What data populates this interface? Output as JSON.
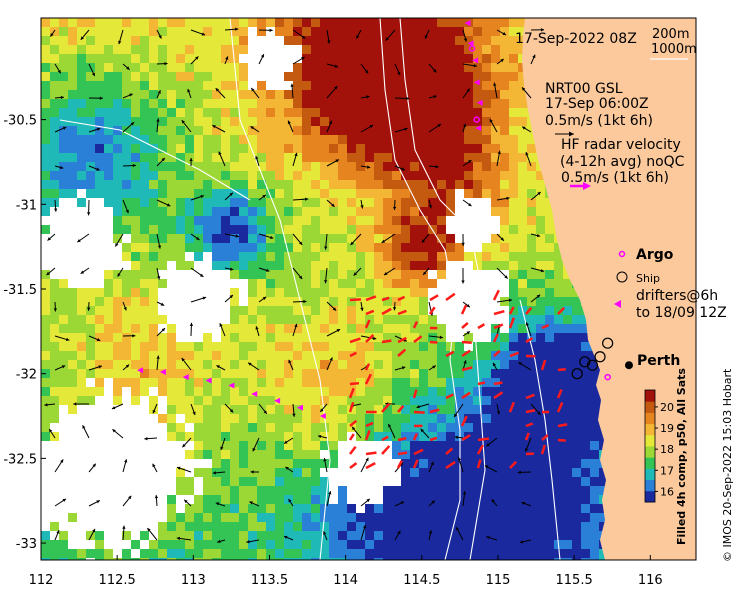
{
  "header": {
    "datetime": "17-Sep-2022 08Z",
    "depth_legend": [
      "200m",
      "1000m"
    ]
  },
  "model_legend": {
    "title": "NRT00 GSL",
    "time": "17-Sep 06:00Z",
    "scale": "0.5m/s (1kt 6h)"
  },
  "radar_legend": {
    "line1": "HF radar velocity",
    "line2": "(4-12h avg) noQC",
    "scale": "0.5m/s (1kt 6h)"
  },
  "markers": {
    "argo": "Argo",
    "ship": "Ship",
    "drifters_line1": "drifters@6h",
    "drifters_line2": "to 18/09 12Z",
    "city": "Perth"
  },
  "axes": {
    "x_ticks": [
      "112",
      "112.5",
      "113",
      "113.5",
      "114",
      "114.5",
      "115",
      "115.5",
      "116"
    ],
    "y_ticks": [
      "-30.5",
      "-31",
      "-31.5",
      "-32",
      "-32.5",
      "-33"
    ],
    "xlim": [
      112.0,
      116.3
    ],
    "ylim": [
      -33.1,
      -29.9
    ]
  },
  "colorbar": {
    "ticks": [
      "20",
      "19",
      "18",
      "17",
      "16"
    ],
    "range": [
      15.5,
      20.8
    ],
    "title": "Filled 4h comp, p50, All Sats",
    "colors": [
      "#1a2a9e",
      "#2a7fd6",
      "#1fb9b7",
      "#34c455",
      "#9bd835",
      "#e4e838",
      "#f3b635",
      "#e6851f",
      "#c45910",
      "#a3110b"
    ]
  },
  "credit": "© IMOS 20-Sep-2022 15:03 Hobart",
  "colors": {
    "land": "#fbc99c",
    "argo": "#ff00ff",
    "drifter": "#ff00ff",
    "radar": "#ff1a1a",
    "ship": "#000000"
  },
  "argo_floats": [
    [
      115.72,
      -32.02
    ],
    [
      114.83,
      -30.08
    ],
    [
      114.86,
      -30.5
    ]
  ],
  "drifter_track": [
    [
      112.65,
      -31.98
    ],
    [
      112.8,
      -31.99
    ],
    [
      112.95,
      -32.02
    ],
    [
      113.1,
      -32.04
    ],
    [
      113.25,
      -32.07
    ],
    [
      113.4,
      -32.12
    ],
    [
      113.55,
      -32.16
    ],
    [
      113.7,
      -32.2
    ],
    [
      113.85,
      -32.25
    ],
    [
      114.8,
      -29.93
    ],
    [
      114.82,
      -30.05
    ],
    [
      114.85,
      -30.15
    ],
    [
      114.86,
      -30.28
    ],
    [
      114.88,
      -30.4
    ],
    [
      114.87,
      -30.55
    ]
  ],
  "ship_positions": [
    [
      115.52,
      -32.0
    ],
    [
      115.57,
      -31.93
    ],
    [
      115.62,
      -31.95
    ],
    [
      115.67,
      -31.9
    ],
    [
      115.72,
      -31.82
    ]
  ],
  "perth": [
    115.86,
    -31.95
  ]
}
